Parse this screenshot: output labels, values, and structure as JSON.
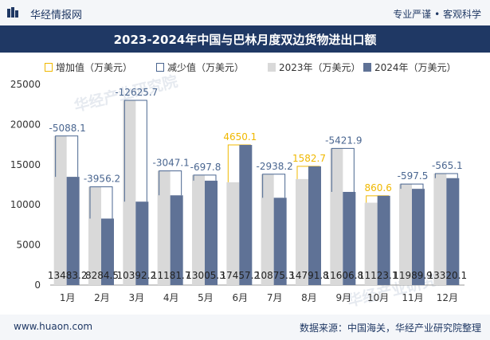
{
  "header": {
    "brand": "华经情报网",
    "tagline": "专业严谨 • 客观科学",
    "brand_color": "#1f3864"
  },
  "footer": {
    "url": "www.huaon.com",
    "source": "数据来源：中国海关，华经产业研究院整理"
  },
  "watermark": "华经产业研究院",
  "chart_data": {
    "type": "bar",
    "title": "2023-2024年中国与巴林月度双边货物进出口额",
    "categories": [
      "1月",
      "2月",
      "3月",
      "4月",
      "5月",
      "6月",
      "7月",
      "8月",
      "9月",
      "10月",
      "11月",
      "12月"
    ],
    "series": [
      {
        "name": "2023年（万美元）",
        "color": "#d9d9d9",
        "values": [
          18571.3,
          12240.9,
          23018.0,
          14228.8,
          13703.1,
          12807.1,
          13813.5,
          13209.2,
          17028.8,
          10262.5,
          12587.4,
          13885.2
        ]
      },
      {
        "name": "2024年（万美元）",
        "color": "#5f7296",
        "values": [
          13483.2,
          8284.5,
          10392.2,
          11181.7,
          13005.3,
          17457.2,
          10875.3,
          14791.8,
          11606.8,
          11123.1,
          11989.9,
          13320.1
        ]
      }
    ],
    "change": {
      "values": [
        -5088.1,
        -3956.2,
        -12625.7,
        -3047.1,
        -697.8,
        4650.1,
        -2938.2,
        1582.7,
        -5421.9,
        860.6,
        -597.5,
        -565.1
      ],
      "labels": [
        "-5088.1",
        "-3956.2",
        "-12625.7",
        "-3047.1",
        "-697.8",
        "4650.1",
        "-2938.2",
        "1582.7",
        "-5421.9",
        "860.6",
        "-597.5",
        "-565.1"
      ],
      "increase_name": "增加值（万美元）",
      "decrease_name": "减少值（万美元）",
      "increase_color": "#f0b800",
      "decrease_color": "#4a6690"
    },
    "value_labels_2024": [
      "13483.2",
      "8284.5",
      "10392.2",
      "11181.7",
      "13005.3",
      "17457.2",
      "10875.3",
      "14791.8",
      "11606.8",
      "11123.1",
      "11989.9",
      "13320.1"
    ],
    "ylim": [
      0,
      25000
    ],
    "yticks": [
      0,
      5000,
      10000,
      15000,
      20000,
      25000
    ],
    "ytick_labels": [
      "0",
      "5000",
      "10000",
      "15000",
      "20000",
      "25000"
    ],
    "grid": false,
    "legend_position": "top"
  }
}
